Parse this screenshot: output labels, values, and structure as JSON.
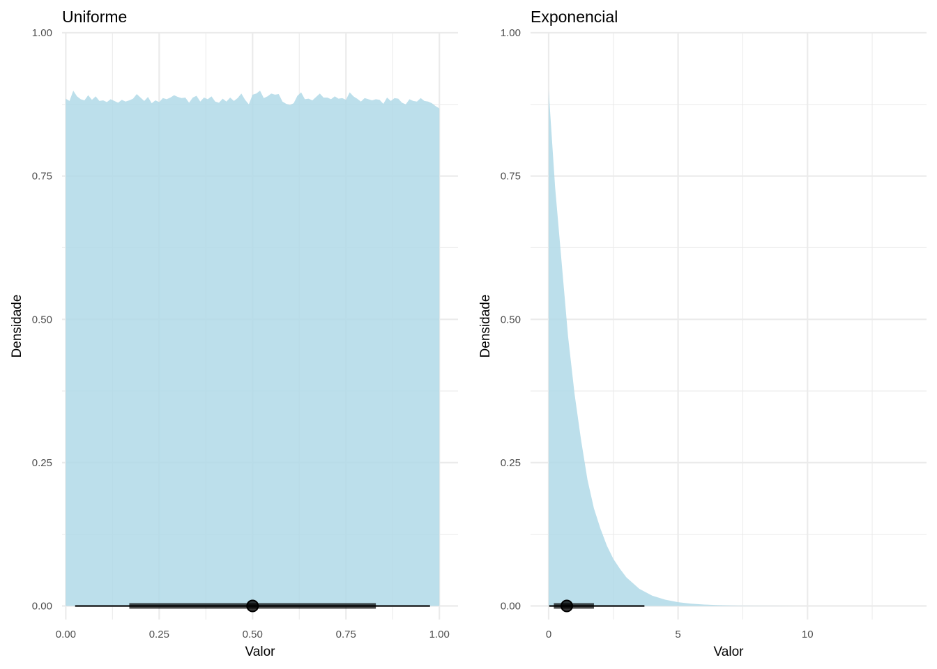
{
  "chart_data": [
    {
      "type": "area",
      "title": "Uniforme",
      "xlabel": "Valor",
      "ylabel": "Densidade",
      "xlim": [
        -0.01,
        1.05
      ],
      "ylim": [
        -0.0237,
        1.0
      ],
      "x_ticks": [
        0,
        0.25,
        0.5,
        0.75,
        1.0
      ],
      "x_tick_labels": [
        "0.00",
        "0.25",
        "0.50",
        "0.75",
        "1.00"
      ],
      "y_ticks": [
        0,
        0.25,
        0.5,
        0.75,
        1.0
      ],
      "y_tick_labels": [
        "0.00",
        "0.25",
        "0.50",
        "0.75",
        "1.00"
      ],
      "fill_color": "#add8e6",
      "density": {
        "x": [
          0,
          0.01,
          0.02,
          0.03,
          0.04,
          0.05,
          0.06,
          0.07,
          0.08,
          0.09,
          0.1,
          0.11,
          0.12,
          0.13,
          0.14,
          0.15,
          0.16,
          0.17,
          0.18,
          0.19,
          0.2,
          0.21,
          0.22,
          0.23,
          0.24,
          0.25,
          0.26,
          0.27,
          0.28,
          0.29,
          0.3,
          0.31,
          0.32,
          0.33,
          0.34,
          0.35,
          0.36,
          0.37,
          0.38,
          0.39,
          0.4,
          0.41,
          0.42,
          0.43,
          0.44,
          0.45,
          0.46,
          0.47,
          0.48,
          0.49,
          0.5,
          0.51,
          0.52,
          0.53,
          0.54,
          0.55,
          0.56,
          0.57,
          0.58,
          0.59,
          0.6,
          0.61,
          0.62,
          0.63,
          0.64,
          0.65,
          0.66,
          0.67,
          0.68,
          0.69,
          0.7,
          0.71,
          0.72,
          0.73,
          0.74,
          0.75,
          0.76,
          0.77,
          0.78,
          0.79,
          0.8,
          0.81,
          0.82,
          0.83,
          0.84,
          0.85,
          0.86,
          0.87,
          0.88,
          0.89,
          0.9,
          0.91,
          0.92,
          0.93,
          0.94,
          0.95,
          0.96,
          0.97,
          0.98,
          0.99,
          1.0
        ],
        "y": [
          0.885,
          0.881,
          0.899,
          0.889,
          0.884,
          0.882,
          0.891,
          0.883,
          0.889,
          0.881,
          0.882,
          0.879,
          0.884,
          0.881,
          0.878,
          0.883,
          0.88,
          0.882,
          0.885,
          0.893,
          0.887,
          0.881,
          0.888,
          0.877,
          0.882,
          0.879,
          0.886,
          0.884,
          0.887,
          0.891,
          0.888,
          0.886,
          0.887,
          0.878,
          0.887,
          0.89,
          0.88,
          0.887,
          0.884,
          0.889,
          0.88,
          0.878,
          0.885,
          0.88,
          0.887,
          0.881,
          0.886,
          0.894,
          0.883,
          0.875,
          0.892,
          0.894,
          0.899,
          0.886,
          0.889,
          0.894,
          0.892,
          0.893,
          0.88,
          0.876,
          0.874,
          0.877,
          0.89,
          0.896,
          0.884,
          0.885,
          0.882,
          0.888,
          0.894,
          0.887,
          0.887,
          0.884,
          0.889,
          0.885,
          0.886,
          0.883,
          0.896,
          0.889,
          0.885,
          0.88,
          0.886,
          0.884,
          0.882,
          0.884,
          0.883,
          0.876,
          0.887,
          0.881,
          0.886,
          0.885,
          0.878,
          0.875,
          0.884,
          0.881,
          0.88,
          0.886,
          0.881,
          0.88,
          0.877,
          0.872,
          0.868
        ]
      },
      "interval": {
        "point": 0.5,
        "inner": [
          0.17,
          0.83
        ],
        "outer": [
          0.025,
          0.975
        ],
        "y": 0
      }
    },
    {
      "type": "area",
      "title": "Exponencial",
      "xlabel": "Valor",
      "ylabel": "Densidade",
      "xlim": [
        -0.7,
        14.6
      ],
      "ylim": [
        -0.0237,
        1.0
      ],
      "x_ticks": [
        0,
        5,
        10
      ],
      "x_tick_labels": [
        "0",
        "5",
        "10"
      ],
      "y_ticks": [
        0,
        0.25,
        0.5,
        0.75,
        1.0
      ],
      "y_tick_labels": [
        "0.00",
        "0.25",
        "0.50",
        "0.75",
        "1.00"
      ],
      "fill_color": "#add8e6",
      "density": {
        "x": [
          0,
          0.25,
          0.5,
          0.75,
          1,
          1.25,
          1.5,
          1.75,
          2,
          2.25,
          2.5,
          2.75,
          3,
          3.5,
          4,
          4.5,
          5,
          5.5,
          6,
          6.5,
          7,
          7.5,
          8,
          9,
          10,
          11,
          12,
          13.6
        ],
        "y": [
          0.9,
          0.73,
          0.6,
          0.47,
          0.37,
          0.29,
          0.22,
          0.17,
          0.135,
          0.105,
          0.082,
          0.065,
          0.05,
          0.03,
          0.018,
          0.011,
          0.0065,
          0.004,
          0.0025,
          0.0015,
          0.0009,
          0.0005,
          0.0003,
          0.0001,
          5e-05,
          2e-05,
          1e-05,
          0.0
        ]
      },
      "interval": {
        "point": 0.7,
        "inner": [
          0.2,
          1.75
        ],
        "outer": [
          0.02,
          3.7
        ],
        "y": 0
      }
    }
  ]
}
